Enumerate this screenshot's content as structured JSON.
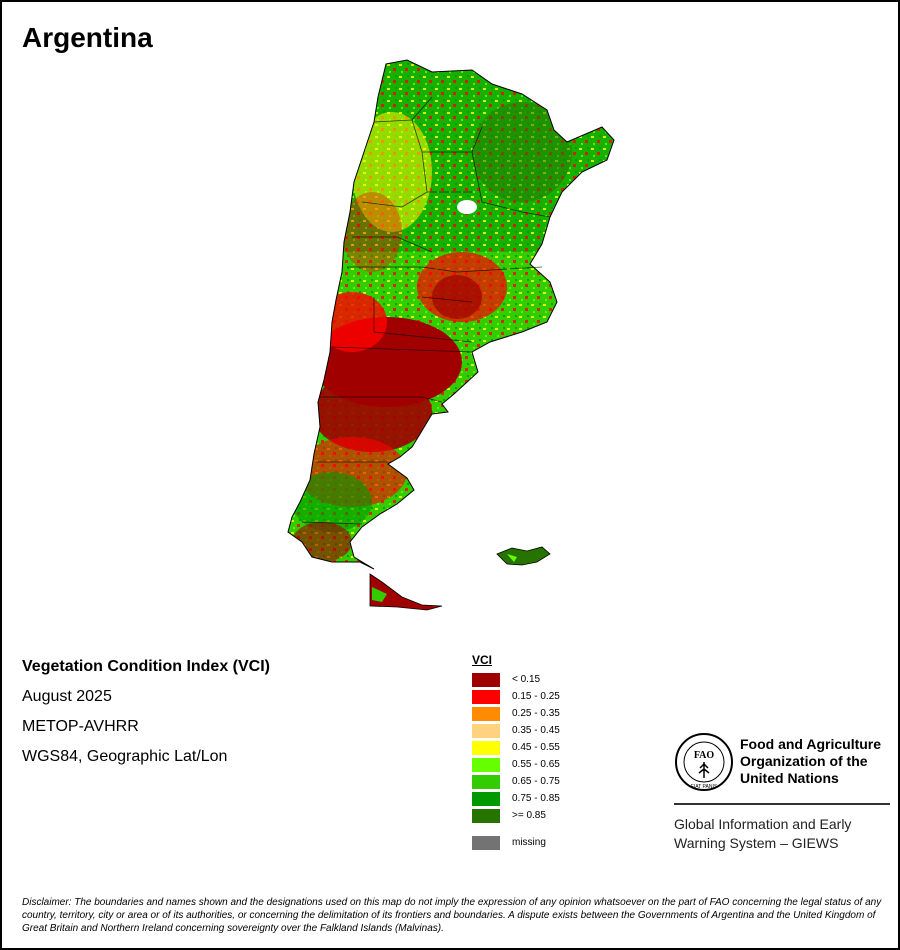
{
  "title": "Argentina",
  "info": {
    "index_name": "Vegetation Condition Index (VCI)",
    "period": "August 2025",
    "sensor": "METOP-AVHRR",
    "projection": "WGS84, Geographic Lat/Lon"
  },
  "legend": {
    "title": "VCI",
    "classes": [
      {
        "label": "< 0.15",
        "color": "#a00000"
      },
      {
        "label": "0.15 - 0.25",
        "color": "#ff0000"
      },
      {
        "label": "0.25 - 0.35",
        "color": "#ff8c00"
      },
      {
        "label": "0.35 - 0.45",
        "color": "#ffd27f"
      },
      {
        "label": "0.45 - 0.55",
        "color": "#ffff00"
      },
      {
        "label": "0.55 - 0.65",
        "color": "#66ff00"
      },
      {
        "label": "0.65 - 0.75",
        "color": "#33cc00"
      },
      {
        "label": "0.75 - 0.85",
        "color": "#009900"
      },
      {
        "label": ">= 0.85",
        "color": "#267300"
      }
    ],
    "missing": {
      "label": "missing",
      "color": "#737373"
    }
  },
  "fao": {
    "name_line1": "Food and Agriculture",
    "name_line2": "Organization of the",
    "name_line3": "United Nations",
    "logo_text": "FAO",
    "motto": "FIAT PANIS"
  },
  "giews": {
    "line1": "Global Information and Early",
    "line2": "Warning System – GIEWS"
  },
  "disclaimer": "Disclaimer: The boundaries and names shown and the designations used on this map do not imply the expression of any opinion whatsoever on the part of FAO concerning the legal status of any country, territory, city or area or of its authorities, or concerning the delimitation of its frontiers and boundaries. A dispute exists between the Governments of Argentina and the United Kingdom of Great Britain and Northern Ireland concerning sovereignty over the Falkland Islands (Malvinas)."
}
